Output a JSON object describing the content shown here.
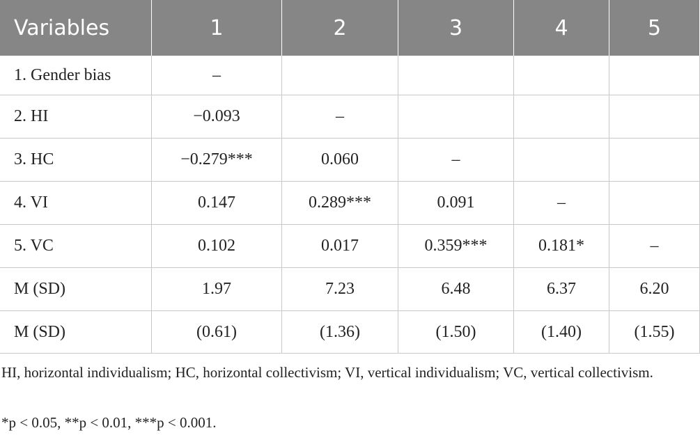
{
  "table": {
    "header": [
      "Variables",
      "1",
      "2",
      "3",
      "4",
      "5"
    ],
    "rows": [
      [
        "1. Gender bias",
        "–",
        null,
        null,
        null,
        null
      ],
      [
        "2. HI",
        "−0.093",
        "–",
        null,
        null,
        null
      ],
      [
        "3. HC",
        "−0.279***",
        "0.060",
        "–",
        null,
        null
      ],
      [
        "4. VI",
        "0.147",
        "0.289***",
        "0.091",
        "–",
        null
      ],
      [
        "5. VC",
        "0.102",
        "0.017",
        "0.359***",
        "0.181*",
        "–"
      ],
      [
        "M (SD)",
        "1.97",
        "7.23",
        "6.48",
        "6.37",
        "6.20"
      ],
      [
        "M (SD)",
        "(0.61)",
        "(1.36)",
        "(1.50)",
        "(1.40)",
        "(1.55)"
      ]
    ]
  },
  "footnotes": [
    "HI, horizontal individualism; HC, horizontal collectivism; VI, vertical individualism; VC, vertical collectivism.",
    "*p < 0.05, **p < 0.01, ***p < 0.001."
  ]
}
